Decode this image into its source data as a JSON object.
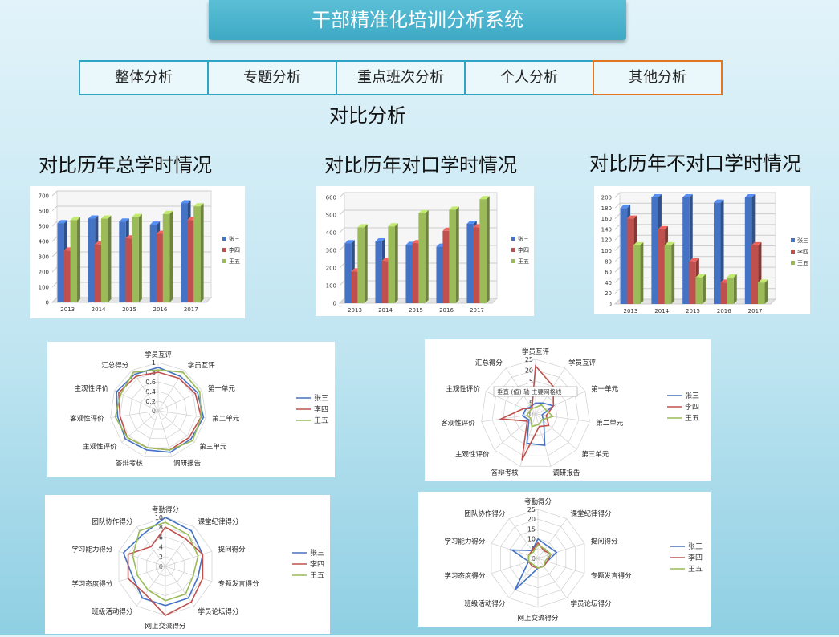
{
  "header": {
    "title": "干部精准化培训分析系统"
  },
  "tabs": [
    {
      "label": "整体分析"
    },
    {
      "label": "专题分析"
    },
    {
      "label": "重点班次分析"
    },
    {
      "label": "个人分析"
    },
    {
      "label": "其他分析"
    }
  ],
  "active_tab": 4,
  "page_subtitle": "对比分析",
  "colors": {
    "zhangsan": "#4472c4",
    "lisi": "#c0504d",
    "wangwu": "#9bbb59",
    "accent": "#e27623",
    "banner": "#45b0cb"
  },
  "chart_data": [
    {
      "type": "bar",
      "title": "对比历年总学时情况",
      "categories": [
        "2013",
        "2014",
        "2015",
        "2016",
        "2017"
      ],
      "yticks": [
        "0",
        "100",
        "200",
        "300",
        "400",
        "500",
        "600",
        "700"
      ],
      "ylim": [
        0,
        700
      ],
      "legend_placement": "right",
      "series": [
        {
          "name": "张三",
          "values": [
            520,
            550,
            530,
            510,
            650
          ]
        },
        {
          "name": "李四",
          "values": [
            340,
            380,
            420,
            450,
            540
          ]
        },
        {
          "name": "王五",
          "values": [
            540,
            550,
            560,
            580,
            630
          ]
        }
      ]
    },
    {
      "type": "bar",
      "title": "对比历年对口学时情况",
      "categories": [
        "2013",
        "2014",
        "2015",
        "2016",
        "2017"
      ],
      "yticks": [
        "0",
        "100",
        "200",
        "300",
        "400",
        "500",
        "600"
      ],
      "ylim": [
        0,
        600
      ],
      "legend_placement": "right",
      "series": [
        {
          "name": "张三",
          "values": [
            340,
            350,
            330,
            320,
            450
          ]
        },
        {
          "name": "李四",
          "values": [
            180,
            240,
            340,
            410,
            430
          ]
        },
        {
          "name": "王五",
          "values": [
            430,
            435,
            510,
            530,
            590
          ]
        }
      ]
    },
    {
      "type": "bar",
      "title": "对比历年不对口学时情况",
      "categories": [
        "2013",
        "2014",
        "2015",
        "2016",
        "2017"
      ],
      "yticks": [
        "0",
        "20",
        "40",
        "60",
        "80",
        "100",
        "120",
        "140",
        "160",
        "180",
        "200"
      ],
      "ylim": [
        0,
        200
      ],
      "legend_placement": "right",
      "series": [
        {
          "name": "张三",
          "values": [
            180,
            200,
            200,
            190,
            200
          ]
        },
        {
          "name": "李四",
          "values": [
            160,
            140,
            80,
            40,
            110
          ]
        },
        {
          "name": "王五",
          "values": [
            110,
            110,
            50,
            50,
            40
          ]
        }
      ]
    },
    {
      "type": "radar",
      "categories": [
        "学员互评",
        "学员互评",
        "第一单元",
        "第二单元",
        "第三单元",
        "调研报告",
        "答辩考核",
        "主观性评价",
        "客观性评价",
        "主观性评价",
        "汇总得分"
      ],
      "rticks": [
        "0",
        "0.2",
        "0.4",
        "0.6",
        "0.8",
        "1"
      ],
      "rlim": [
        0,
        1
      ],
      "legend_placement": "right",
      "series": [
        {
          "name": "张三",
          "values": [
            0.9,
            0.85,
            0.9,
            0.95,
            0.9,
            0.9,
            0.85,
            0.9,
            0.85,
            0.95,
            0.9
          ]
        },
        {
          "name": "李四",
          "values": [
            0.8,
            0.8,
            0.85,
            0.9,
            0.85,
            0.85,
            0.8,
            0.85,
            0.8,
            0.9,
            0.85
          ]
        },
        {
          "name": "王五",
          "values": [
            0.85,
            0.95,
            0.95,
            0.9,
            0.95,
            0.85,
            0.8,
            0.85,
            0.9,
            0.85,
            0.95
          ]
        }
      ]
    },
    {
      "type": "radar",
      "categories": [
        "学员互评",
        "学员互评",
        "第一单元",
        "第二单元",
        "第三单元",
        "调研报告",
        "答辩考核",
        "主观性评价",
        "客观性评价",
        "主观性评价",
        "汇总得分"
      ],
      "rticks": [
        "0",
        "5",
        "10",
        "15",
        "20",
        "25"
      ],
      "rlim": [
        0,
        25
      ],
      "annotation": "垂直 (值) 轴 主要网格线",
      "legend_placement": "right",
      "series": [
        {
          "name": "张三",
          "values": [
            5,
            6,
            9,
            3,
            5,
            15,
            14,
            4,
            6,
            5,
            4
          ]
        },
        {
          "name": "李四",
          "values": [
            22,
            15,
            9,
            5,
            8,
            6,
            22,
            5,
            16,
            6,
            3
          ]
        },
        {
          "name": "王五",
          "values": [
            3,
            5,
            5,
            8,
            4,
            5,
            6,
            3,
            4,
            3,
            3
          ]
        }
      ]
    },
    {
      "type": "radar",
      "categories": [
        "考勤得分",
        "课堂纪律得分",
        "提问得分",
        "专题发言得分",
        "学员论坛得分",
        "网上交流得分",
        "班级活动得分",
        "学习态度得分",
        "学习能力得分",
        "团队协作得分"
      ],
      "rticks": [
        "0",
        "2",
        "4",
        "6",
        "8",
        "10"
      ],
      "rlim": [
        0,
        10
      ],
      "legend_placement": "right",
      "series": [
        {
          "name": "张三",
          "values": [
            10,
            9,
            8,
            7,
            8,
            8,
            8,
            7,
            9,
            8
          ]
        },
        {
          "name": "李四",
          "values": [
            8,
            7,
            8,
            8,
            9,
            10,
            7,
            8,
            8,
            5
          ]
        },
        {
          "name": "王五",
          "values": [
            9,
            8,
            7,
            6,
            7,
            7,
            6,
            6,
            7,
            9
          ]
        }
      ]
    },
    {
      "type": "radar",
      "categories": [
        "考勤得分",
        "课堂纪律得分",
        "提问得分",
        "专题发言得分",
        "学员论坛得分",
        "网上交流得分",
        "班级活动得分",
        "学习态度得分",
        "学习能力得分",
        "团队协作得分"
      ],
      "rticks": [
        "0",
        "5",
        "10",
        "15",
        "20",
        "25"
      ],
      "rlim": [
        0,
        25
      ],
      "legend_placement": "right",
      "series": [
        {
          "name": "张三",
          "values": [
            10,
            8,
            10,
            5,
            5,
            5,
            20,
            5,
            14,
            5
          ]
        },
        {
          "name": "李四",
          "values": [
            8,
            5,
            7,
            5,
            5,
            5,
            5,
            5,
            5,
            5
          ]
        },
        {
          "name": "王五",
          "values": [
            7,
            6,
            7,
            4,
            5,
            5,
            4,
            5,
            5,
            4
          ]
        }
      ]
    }
  ]
}
